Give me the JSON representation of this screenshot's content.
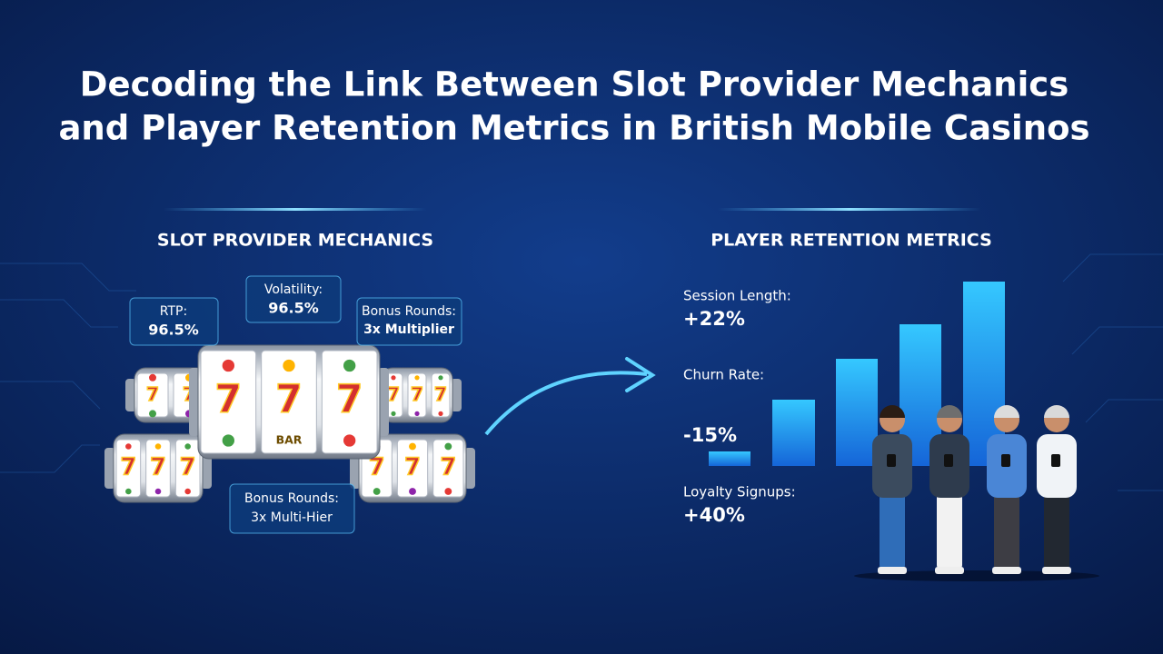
{
  "title": {
    "lines": [
      "Decoding the Link Between Slot Provider Mechanics",
      "and Player Retention Metrics in British Mobile Casinos"
    ]
  },
  "mechanics": {
    "heading": "SLOT PROVIDER MECHANICS",
    "callouts": [
      {
        "label": "RTP:",
        "value": "96.5%"
      },
      {
        "label": "Volatility:",
        "value": "96.5%"
      },
      {
        "label": "Bonus Rounds:",
        "value": "3x Multiplier"
      },
      {
        "label": "Bonus Rounds:",
        "value": "3x Multi-Hier"
      }
    ],
    "symbols": {
      "seven": "7",
      "bar": "BAR"
    }
  },
  "retention": {
    "heading": "PLAYER RETENTION METRICS",
    "metrics": [
      {
        "label": "Session Length:",
        "value": "+22%"
      },
      {
        "label": "Churn Rate:",
        "value": "-15%"
      },
      {
        "label": "Loyalty Signups:",
        "value": "+40%"
      }
    ]
  }
}
